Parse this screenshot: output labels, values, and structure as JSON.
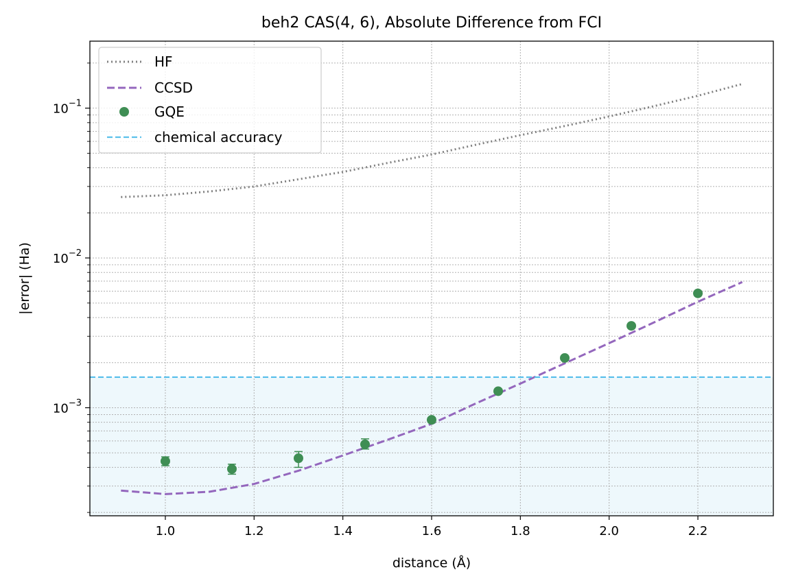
{
  "chart_data": {
    "type": "line",
    "title": "beh2 CAS(4, 6), Absolute Difference from FCI",
    "xlabel": "distance (Å)",
    "ylabel": "|error| (Ha)",
    "xlim": [
      0.83,
      2.37
    ],
    "ylim": [
      0.00019,
      0.28
    ],
    "yscale": "log",
    "x_ticks": [
      1.0,
      1.2,
      1.4,
      1.6,
      1.8,
      2.0,
      2.2
    ],
    "x_tick_labels": [
      "1.0",
      "1.2",
      "1.4",
      "1.6",
      "1.8",
      "2.0",
      "2.2"
    ],
    "y_major_ticks": [
      {
        "value": 0.001,
        "base": "10",
        "exp": "−3"
      },
      {
        "value": 0.01,
        "base": "10",
        "exp": "−2"
      },
      {
        "value": 0.1,
        "base": "10",
        "exp": "−1"
      }
    ],
    "grid": true,
    "legend_position": "top-left",
    "series": [
      {
        "name": "HF",
        "style": "dotted",
        "color": "#808080",
        "x": [
          0.9,
          1.0,
          1.1,
          1.2,
          1.3,
          1.4,
          1.5,
          1.6,
          1.7,
          1.8,
          1.9,
          2.0,
          2.1,
          2.2,
          2.3
        ],
        "y": [
          0.0255,
          0.0262,
          0.0278,
          0.03,
          0.0335,
          0.0375,
          0.043,
          0.049,
          0.057,
          0.066,
          0.076,
          0.088,
          0.103,
          0.121,
          0.145
        ]
      },
      {
        "name": "CCSD",
        "style": "dashed",
        "color": "#9467bd",
        "x": [
          0.9,
          1.0,
          1.1,
          1.2,
          1.3,
          1.4,
          1.5,
          1.6,
          1.7,
          1.8,
          1.9,
          2.0,
          2.1,
          2.2,
          2.3
        ],
        "y": [
          0.00028,
          0.000265,
          0.000275,
          0.00031,
          0.00038,
          0.00048,
          0.00061,
          0.00078,
          0.00107,
          0.00145,
          0.00198,
          0.0027,
          0.0037,
          0.0051,
          0.0069
        ]
      },
      {
        "name": "GQE",
        "style": "marker",
        "color": "#3f8e54",
        "x": [
          1.0,
          1.15,
          1.3,
          1.45,
          1.6,
          1.75,
          1.9,
          2.05,
          2.2
        ],
        "y": [
          0.00044,
          0.00039,
          0.00046,
          0.00057,
          0.00083,
          0.00129,
          0.00215,
          0.00352,
          0.0058
        ],
        "err_low": [
          3e-05,
          3e-05,
          6e-05,
          4e-05,
          3e-05,
          4e-05,
          5e-05,
          7e-05,
          0.0001
        ],
        "err_high": [
          3e-05,
          3e-05,
          5e-05,
          5e-05,
          3e-05,
          4e-05,
          5e-05,
          7e-05,
          0.0001
        ]
      },
      {
        "name": "chemical accuracy",
        "style": "hline-dashed",
        "color": "#5bc0eb",
        "y": 0.0016,
        "fill_below": true,
        "fill_color": "#eef8fc"
      }
    ]
  }
}
